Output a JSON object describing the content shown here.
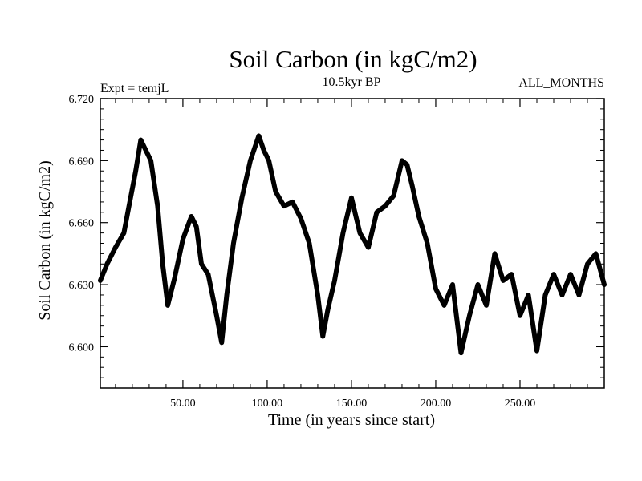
{
  "chart_data": {
    "type": "line",
    "title": "Soil Carbon (in kgC/m2)",
    "subtitle_left": "Expt = temjL",
    "subtitle_center": "10.5kyr BP",
    "subtitle_right": "ALL_MONTHS",
    "xlabel": "Time (in years since start)",
    "ylabel": "Soil Carbon (in kgC/m2)",
    "xlim": [
      1,
      300
    ],
    "ylim": [
      6.58,
      6.72
    ],
    "xticks": [
      50,
      100,
      150,
      200,
      250
    ],
    "xtick_labels": [
      "50.00",
      "100.00",
      "150.00",
      "200.00",
      "250.00"
    ],
    "yticks": [
      6.6,
      6.63,
      6.66,
      6.69,
      6.72
    ],
    "ytick_labels": [
      "6.600",
      "6.630",
      "6.660",
      "6.690",
      "6.720"
    ],
    "series": [
      {
        "name": "Soil Carbon",
        "color": "#000000",
        "x": [
          1,
          5,
          10,
          15,
          18,
          22,
          25,
          28,
          31,
          35,
          38,
          41,
          45,
          50,
          55,
          58,
          61,
          65,
          70,
          73,
          76,
          80,
          85,
          90,
          95,
          98,
          101,
          105,
          110,
          115,
          120,
          125,
          130,
          133,
          136,
          140,
          145,
          150,
          155,
          160,
          165,
          170,
          175,
          180,
          183,
          186,
          190,
          195,
          200,
          205,
          210,
          215,
          220,
          225,
          230,
          235,
          240,
          245,
          250,
          255,
          260,
          265,
          270,
          275,
          280,
          285,
          290,
          295,
          300
        ],
        "y": [
          6.632,
          6.64,
          6.648,
          6.655,
          6.668,
          6.685,
          6.7,
          6.695,
          6.69,
          6.668,
          6.64,
          6.62,
          6.633,
          6.652,
          6.663,
          6.658,
          6.64,
          6.635,
          6.615,
          6.602,
          6.625,
          6.65,
          6.672,
          6.69,
          6.702,
          6.695,
          6.69,
          6.675,
          6.668,
          6.67,
          6.662,
          6.65,
          6.625,
          6.605,
          6.618,
          6.632,
          6.655,
          6.672,
          6.655,
          6.648,
          6.665,
          6.668,
          6.673,
          6.69,
          6.688,
          6.678,
          6.663,
          6.65,
          6.628,
          6.62,
          6.63,
          6.597,
          6.615,
          6.63,
          6.62,
          6.645,
          6.632,
          6.635,
          6.615,
          6.625,
          6.598,
          6.625,
          6.635,
          6.625,
          6.635,
          6.625,
          6.64,
          6.645,
          6.63
        ]
      }
    ]
  }
}
